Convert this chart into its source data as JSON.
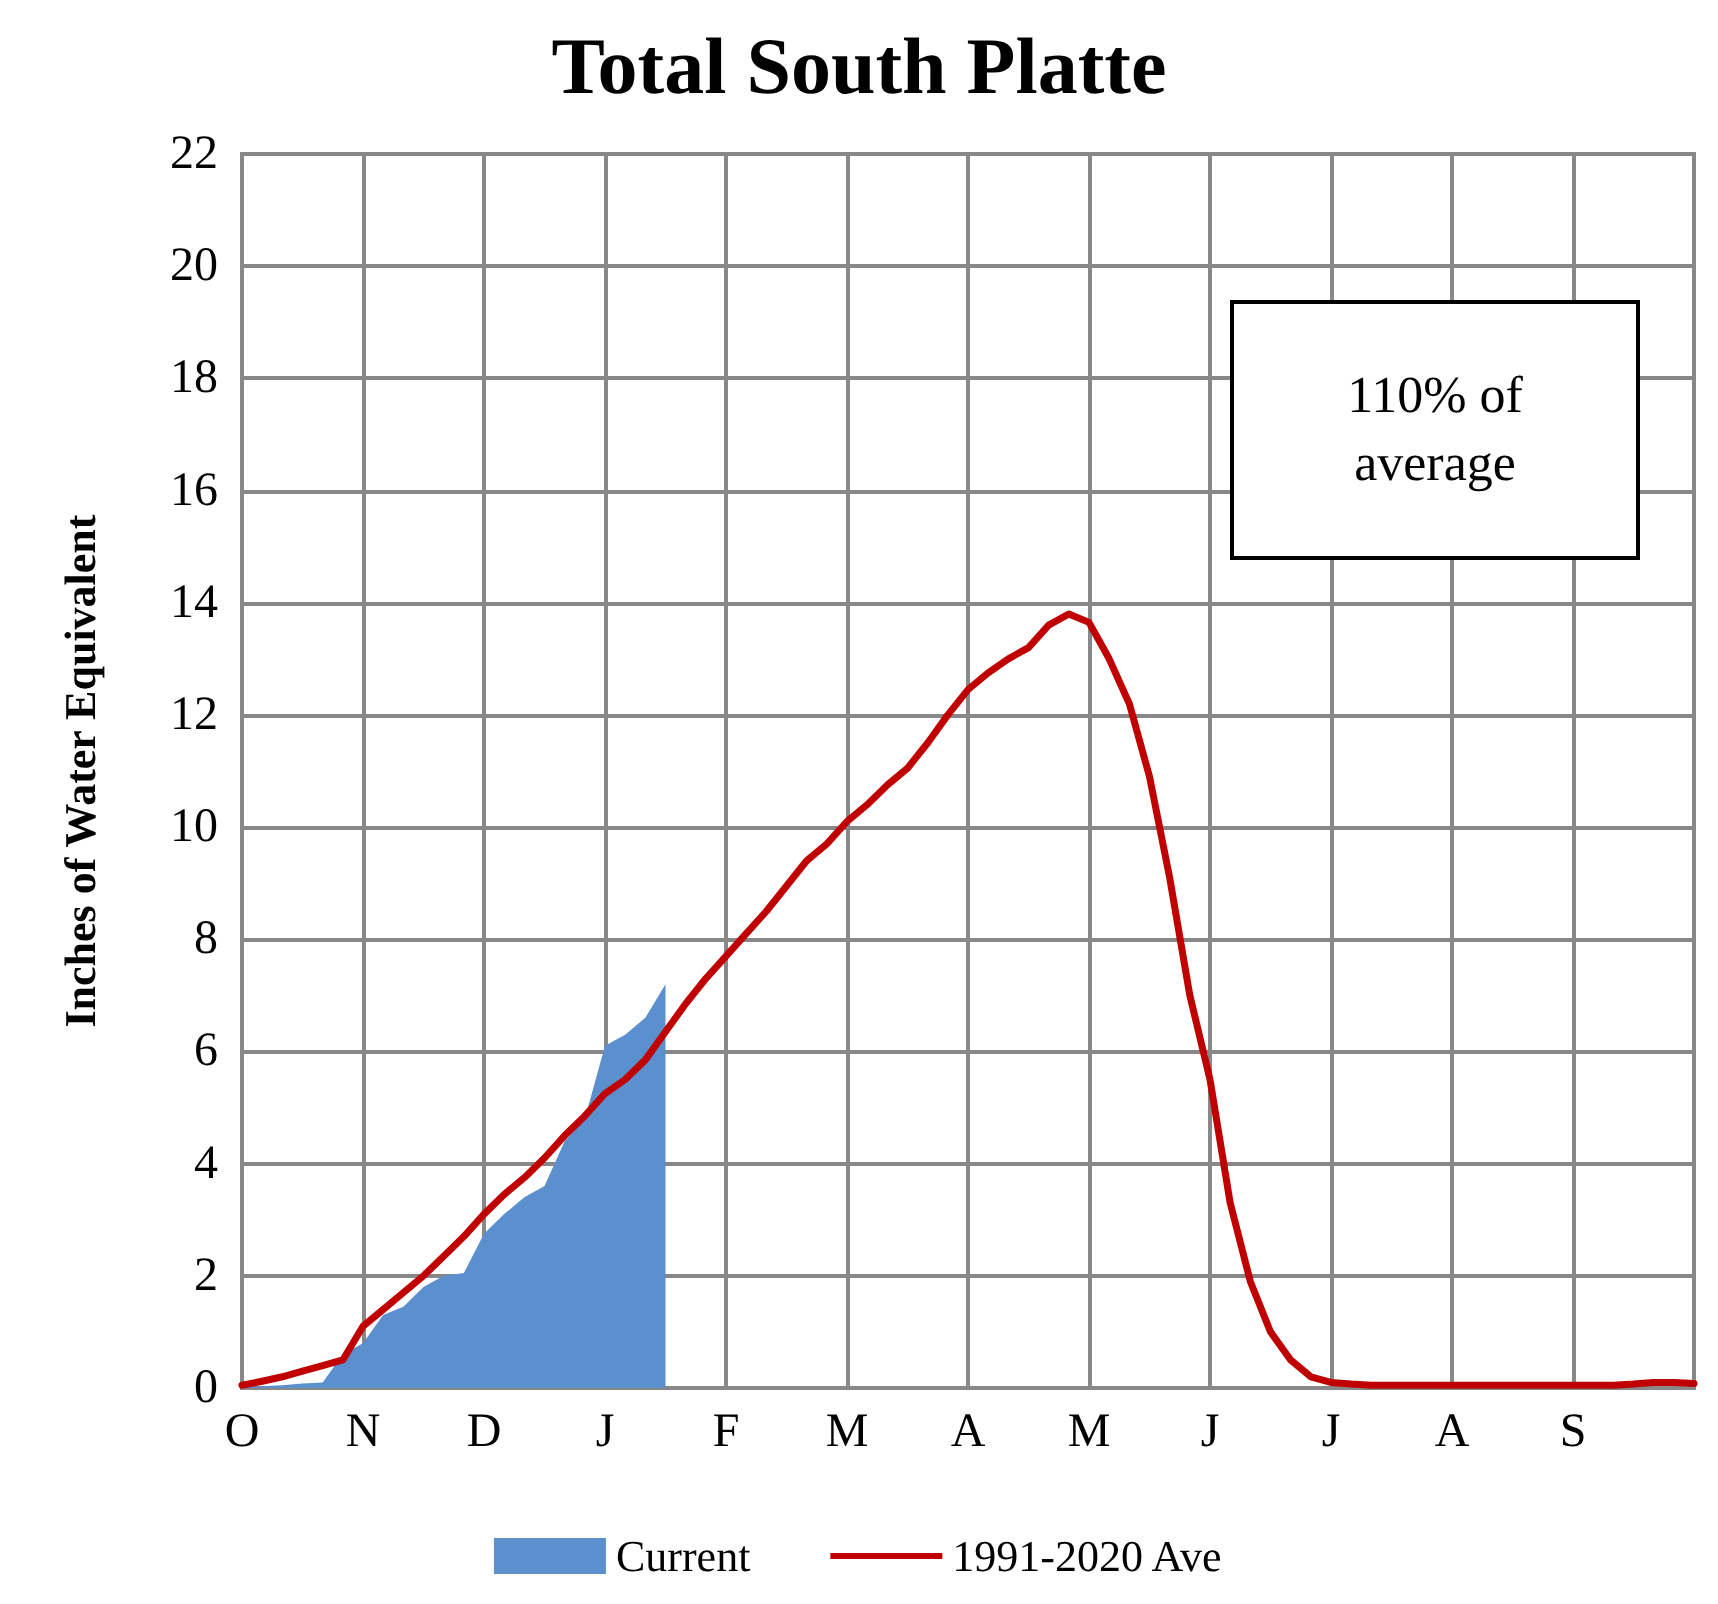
{
  "chart_data": {
    "type": "line",
    "title": "Total South Platte",
    "ylabel": "Inches of Water Equivalent",
    "annotations": [
      "110% of average"
    ],
    "categories": [
      "O",
      null,
      null,
      null,
      null,
      null,
      "N",
      null,
      null,
      null,
      null,
      null,
      "D",
      null,
      null,
      null,
      null,
      null,
      "J",
      null,
      null,
      null,
      null,
      null,
      "F",
      null,
      null,
      null,
      null,
      null,
      "M",
      null,
      null,
      null,
      null,
      null,
      "A",
      null,
      null,
      null,
      null,
      null,
      "M",
      null,
      null,
      null,
      null,
      null,
      "J",
      null,
      null,
      null,
      null,
      null,
      "J",
      null,
      null,
      null,
      null,
      null,
      "A",
      null,
      null,
      null,
      null,
      null,
      "S",
      null,
      null,
      null,
      null,
      null,
      null
    ],
    "ylim": [
      0,
      22
    ],
    "yticks": [
      0,
      2,
      4,
      6,
      8,
      10,
      12,
      14,
      16,
      18,
      20,
      22
    ],
    "grid": true,
    "legend": "bottom",
    "series": [
      {
        "name": "Current",
        "type": "area",
        "color": "#5b8fce",
        "values": [
          0,
          0.03,
          0.05,
          0.08,
          0.1,
          0.6,
          0.8,
          1.3,
          1.45,
          1.8,
          2.0,
          2.05,
          2.75,
          3.1,
          3.4,
          3.6,
          4.4,
          4.8,
          6.1,
          6.3,
          6.6,
          7.2,
          null,
          null,
          null,
          null,
          null,
          null,
          null,
          null,
          null,
          null,
          null,
          null,
          null,
          null,
          null,
          null,
          null,
          null,
          null,
          null,
          null,
          null,
          null,
          null,
          null,
          null,
          null,
          null,
          null,
          null,
          null,
          null,
          null,
          null,
          null,
          null,
          null,
          null,
          null,
          null,
          null,
          null,
          null,
          null,
          null,
          null,
          null,
          null,
          null,
          null,
          null
        ]
      },
      {
        "name": "1991-2020 Ave",
        "type": "line",
        "color": "#c00000",
        "values": [
          0.05,
          0.12,
          0.2,
          0.3,
          0.4,
          0.5,
          1.1,
          1.4,
          1.7,
          2.0,
          2.35,
          2.7,
          3.1,
          3.45,
          3.75,
          4.1,
          4.5,
          4.85,
          5.25,
          5.5,
          5.85,
          6.35,
          6.85,
          7.3,
          7.7,
          8.1,
          8.5,
          8.95,
          9.4,
          9.7,
          10.1,
          10.4,
          10.75,
          11.05,
          11.5,
          12.0,
          12.45,
          12.75,
          13.0,
          13.2,
          13.6,
          13.8,
          13.65,
          13.0,
          12.2,
          10.9,
          9.1,
          7.0,
          5.5,
          3.3,
          1.9,
          1.0,
          0.5,
          0.2,
          0.1,
          0.07,
          0.05,
          0.05,
          0.05,
          0.05,
          0.05,
          0.05,
          0.05,
          0.05,
          0.05,
          0.05,
          0.05,
          0.05,
          0.05,
          0.07,
          0.1,
          0.1,
          0.08
        ]
      }
    ]
  }
}
